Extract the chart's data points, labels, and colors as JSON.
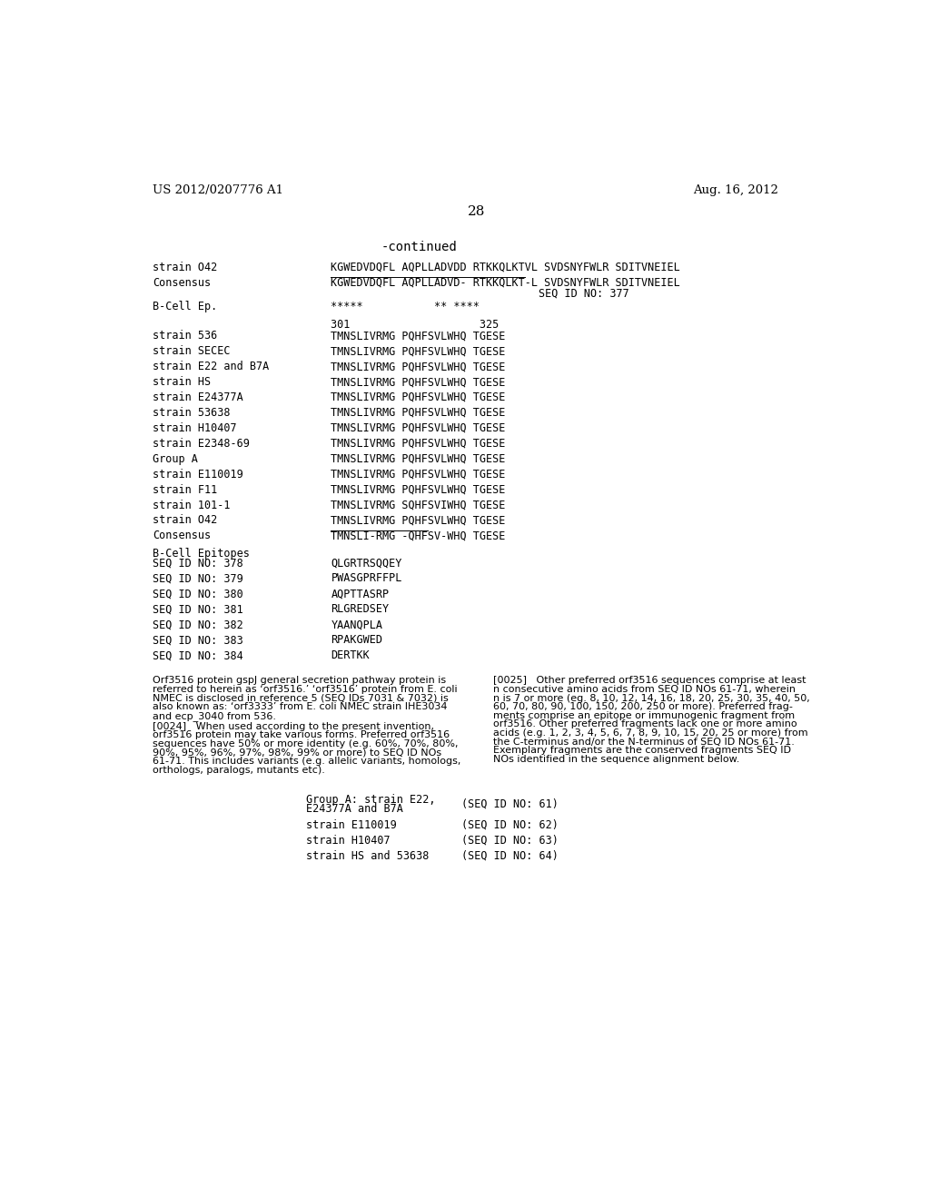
{
  "header_left": "US 2012/0207776 A1",
  "header_right": "Aug. 16, 2012",
  "page_number": "28",
  "continued_label": "-continued",
  "background_color": "#ffffff",
  "text_color": "#000000",
  "mono_font": "DejaVu Sans Mono",
  "serif_font": "DejaVu Serif",
  "sans_font": "DejaVu Sans",
  "sequence_section_1": [
    {
      "label": "strain O42",
      "seq": "KGWEDVDQFL AQPLLADVDD RTKKQLKTVL SVDSNYFWLR SDITVNEIEL",
      "underline": false
    },
    {
      "label": "Consensus",
      "seq": "KGWEDVDQFL AQPLLADVD- RTKKQLKT-L SVDSNYFWLR SDITVNEIEL",
      "underline": true,
      "seqid": "SEQ ID NO: 377"
    },
    {
      "label": "B-Cell Ep.",
      "seq": "*****           ** ****",
      "underline": false
    }
  ],
  "position_line": "301                    325",
  "sequence_section_2": [
    {
      "label": "strain 536",
      "seq": "TMNSLIVRMG PQHFSVLWHQ TGESE",
      "underline": false
    },
    {
      "label": "strain SECEC",
      "seq": "TMNSLIVRMG PQHFSVLWHQ TGESE",
      "underline": false
    },
    {
      "label": "strain E22 and B7A",
      "seq": "TMNSLIVRMG PQHFSVLWHQ TGESE",
      "underline": false
    },
    {
      "label": "strain HS",
      "seq": "TMNSLIVRMG PQHFSVLWHQ TGESE",
      "underline": false
    },
    {
      "label": "strain E24377A",
      "seq": "TMNSLIVRMG PQHFSVLWHQ TGESE",
      "underline": false
    },
    {
      "label": "strain 53638",
      "seq": "TMNSLIVRMG PQHFSVLWHQ TGESE",
      "underline": false
    },
    {
      "label": "strain H10407",
      "seq": "TMNSLIVRMG PQHFSVLWHQ TGESE",
      "underline": false
    },
    {
      "label": "strain E2348-69",
      "seq": "TMNSLIVRMG PQHFSVLWHQ TGESE",
      "underline": false
    },
    {
      "label": "Group A",
      "seq": "TMNSLIVRMG PQHFSVLWHQ TGESE",
      "underline": false
    },
    {
      "label": "strain E110019",
      "seq": "TMNSLIVRMG PQHFSVLWHQ TGESE",
      "underline": false
    },
    {
      "label": "strain F11",
      "seq": "TMNSLIVRMG PQHFSVLWHQ TGESE",
      "underline": false
    },
    {
      "label": "strain 101-1",
      "seq": "TMNSLIVRMG SQHFSVIWHQ TGESE",
      "underline": false
    },
    {
      "label": "strain O42",
      "seq": "TMNSLIVRMG PQHFSVLWHQ TGESE",
      "underline": false
    },
    {
      "label": "Consensus",
      "seq": "TMNSLI-RMG -QHFSV-WHQ TGESE",
      "underline": true
    }
  ],
  "bcell_epitopes_header": "B-Cell Epitopes",
  "bcell_epitopes": [
    {
      "seqid": "SEQ ID NO: 378",
      "seq": "QLGRTRSQQEY"
    },
    {
      "seqid": "SEQ ID NO: 379",
      "seq": "PWASGPRFFPL"
    },
    {
      "seqid": "SEQ ID NO: 380",
      "seq": "AQPTTASRP"
    },
    {
      "seqid": "SEQ ID NO: 381",
      "seq": "RLGREDSEY"
    },
    {
      "seqid": "SEQ ID NO: 382",
      "seq": "YAANQPLA"
    },
    {
      "seqid": "SEQ ID NO: 383",
      "seq": "RPAKGWED"
    },
    {
      "seqid": "SEQ ID NO: 384",
      "seq": "DERTKK"
    }
  ],
  "paragraph_left_lines": [
    "Orf3516 protein gspJ general secretion pathway protein is",
    "referred to herein as ‘orf3516.’ ‘orf3516’ protein from E. coli",
    "NMEC is disclosed in reference 5 (SEQ IDs 7031 & 7032) is",
    "also known as: ‘orf3333’ from E. coli NMEC strain IHE3034",
    "and ecp_3040 from 536.",
    "[0024]   When used according to the present invention,",
    "orf3516 protein may take various forms. Preferred orf3516",
    "sequences have 50% or more identity (e.g. 60%, 70%, 80%,",
    "90%, 95%, 96%, 97%, 98%, 99% or more) to SEQ ID NOs",
    "61-71. This includes variants (e.g. allelic variants, homologs,",
    "orthologs, paralogs, mutants etc)."
  ],
  "paragraph_right_lines": [
    "[0025]   Other preferred orf3516 sequences comprise at least",
    "n consecutive amino acids from SEQ ID NOs 61-71, wherein",
    "n is 7 or more (eg. 8, 10, 12, 14, 16, 18, 20, 25, 30, 35, 40, 50,",
    "60, 70, 80, 90, 100, 150, 200, 250 or more). Preferred frag-",
    "ments comprise an epitope or immunogenic fragment from",
    "orf3516. Other preferred fragments lack one or more amino",
    "acids (e.g. 1, 2, 3, 4, 5, 6, 7, 8, 9, 10, 15, 20, 25 or more) from",
    "the C-terminus and/or the N-terminus of SEQ ID NOs 61-71.",
    "Exemplary fragments are the conserved fragments SEQ ID",
    "NOs identified in the sequence alignment below."
  ],
  "bottom_table": [
    {
      "label1": "Group A: strain E22,",
      "label2": "E24377A and B7A",
      "seqid": "(SEQ ID NO: 61)"
    },
    {
      "label1": "strain E110019",
      "label2": "",
      "seqid": "(SEQ ID NO: 62)"
    },
    {
      "label1": "strain H10407",
      "label2": "",
      "seqid": "(SEQ ID NO: 63)"
    },
    {
      "label1": "strain HS and 53638",
      "label2": "",
      "seqid": "(SEQ ID NO: 64)"
    }
  ]
}
